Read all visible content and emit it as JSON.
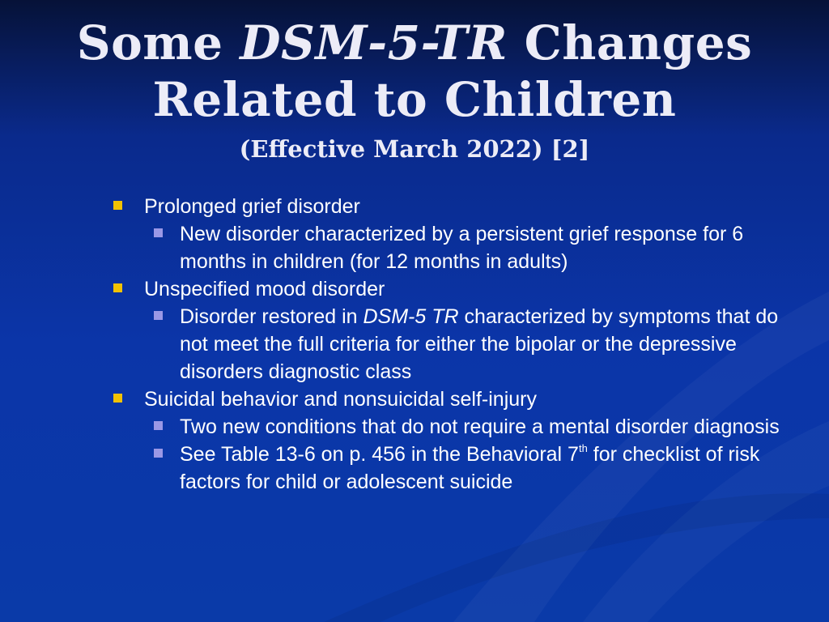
{
  "title": {
    "line1_pre": "Some ",
    "line1_em": "DSM-5-TR",
    "line1_post": " Changes",
    "line2": "Related to Children",
    "subtitle": "(Effective March 2022) [2]"
  },
  "bullets": [
    {
      "text": "Prolonged grief disorder",
      "sub": [
        {
          "text": "New disorder characterized by a persistent grief response for 6 months in children (for 12 months in adults)"
        }
      ]
    },
    {
      "text": "Unspecified mood disorder",
      "sub": [
        {
          "pre": "Disorder restored in ",
          "em": "DSM-5 TR",
          "post": " characterized by symptoms that do not meet the full criteria for either the bipolar or the depressive disorders diagnostic class"
        }
      ]
    },
    {
      "text": "Suicidal behavior and nonsuicidal self-injury",
      "sub": [
        {
          "text": "Two new conditions that do not require a mental disorder diagnosis"
        },
        {
          "pre": "See Table 13-6 on p. 456 in the Behavioral 7",
          "sup": "th",
          "post": " for checklist of risk factors for child or adolescent suicide"
        }
      ]
    }
  ],
  "colors": {
    "background_top": "#061238",
    "background_bottom": "#0a3aa8",
    "title_text": "#ececf7",
    "bullet_level1": "#f2c200",
    "bullet_level2": "#9a98e6"
  }
}
